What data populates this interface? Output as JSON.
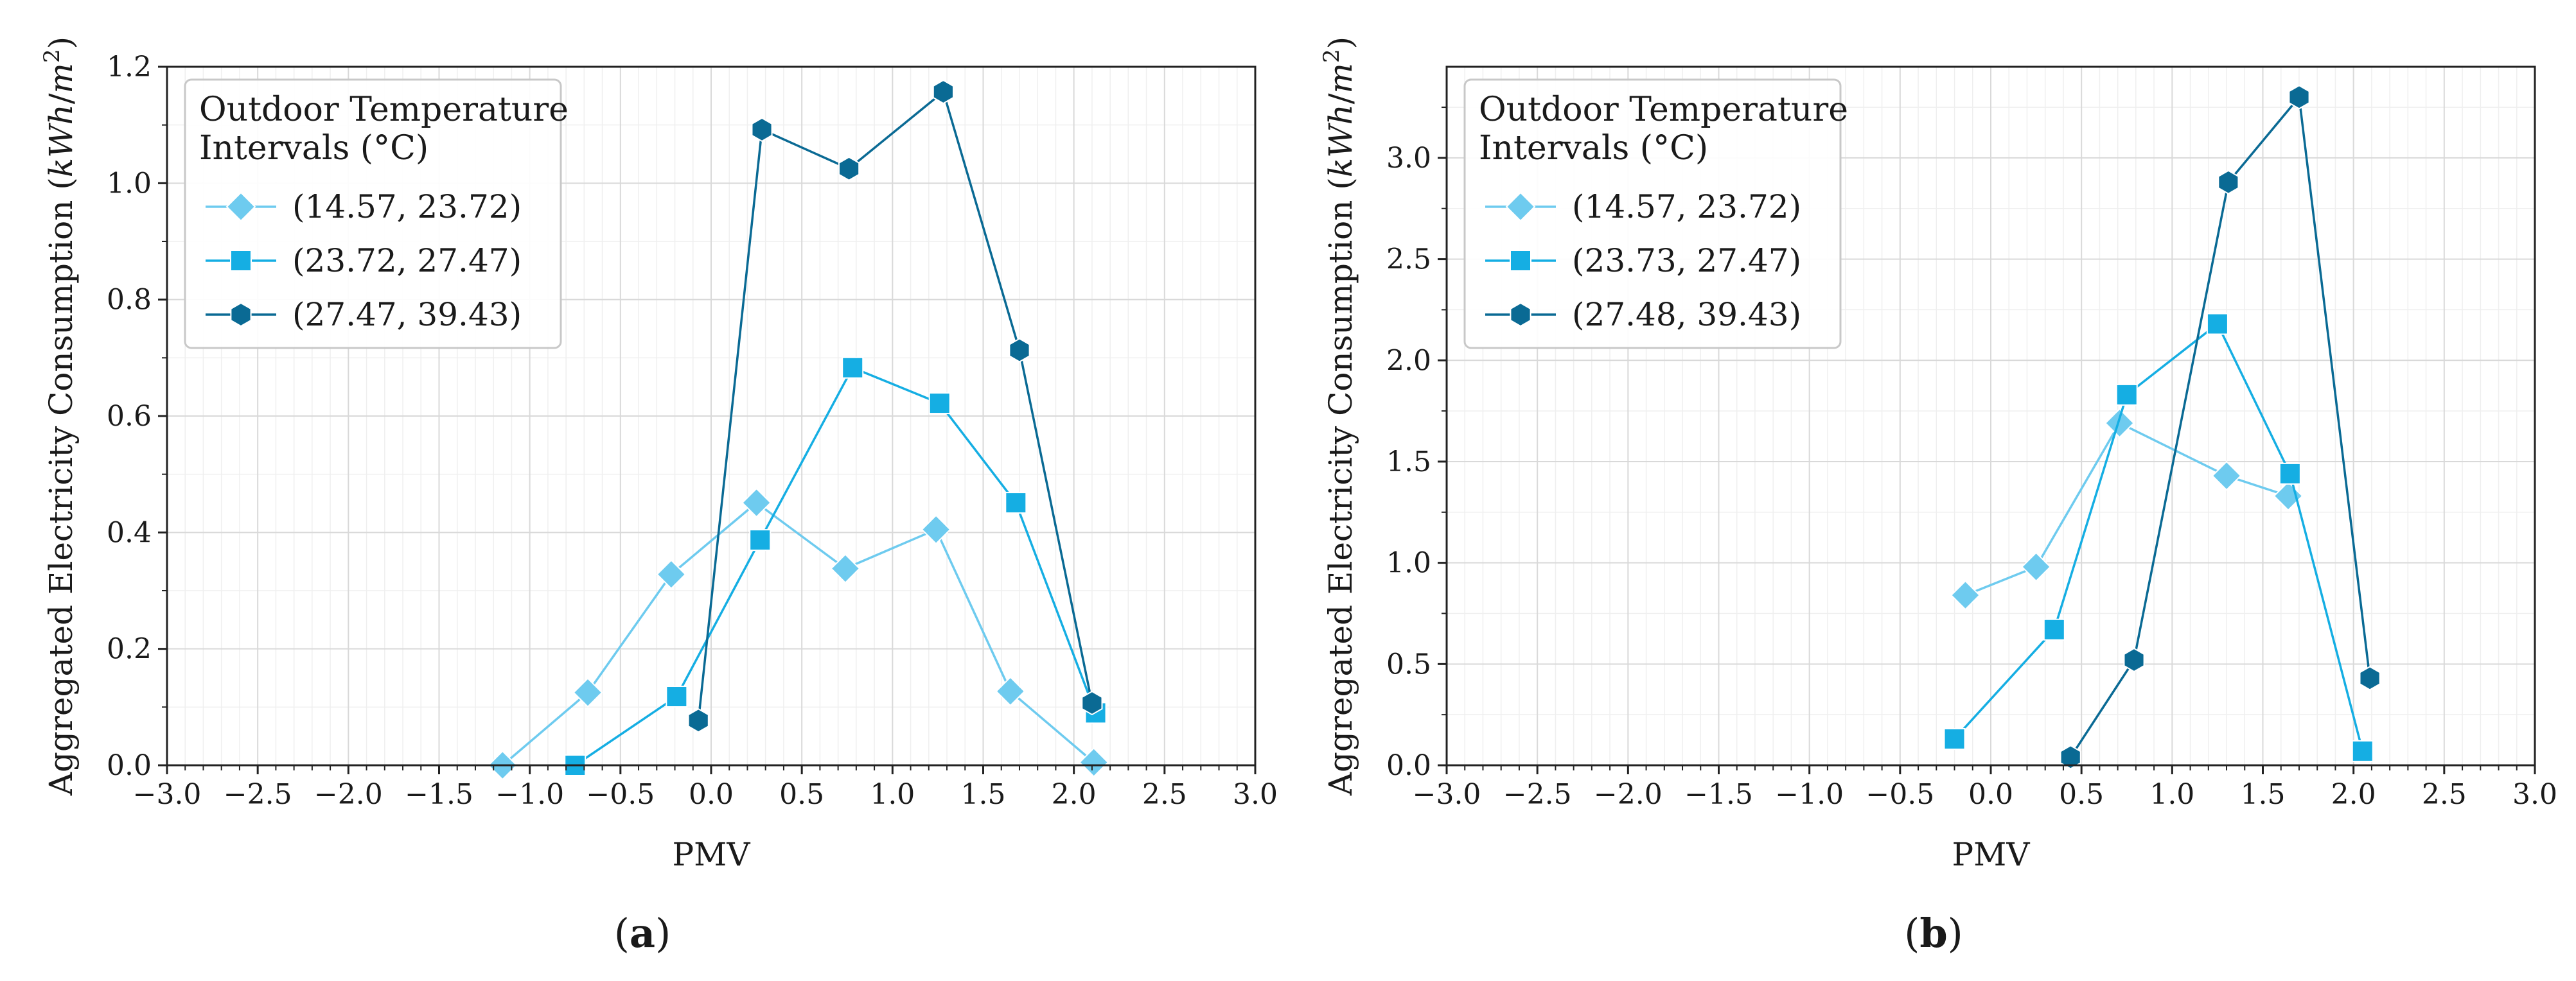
{
  "chart_data": [
    {
      "type": "line",
      "panel_label": "a",
      "caption": {
        "open": "(",
        "letter": "a",
        "close": ")"
      },
      "title": "",
      "xlabel": "PMV",
      "ylabel": "Aggregated Electricity Consumption (kWh/m²)",
      "ylabel_parts": {
        "text": "Aggregated Electricity Consumption (",
        "unit_kwh": "kWh",
        "unit_slash": "/",
        "unit_m": "m",
        "unit_sup": "2",
        "close": ")"
      },
      "xlim": [
        -3.0,
        3.0
      ],
      "ylim": [
        0.0,
        1.2
      ],
      "xticks": [
        "-3.0",
        "-2.5",
        "-2.0",
        "-1.5",
        "-1.0",
        "-0.5",
        "0.0",
        "0.5",
        "1.0",
        "1.5",
        "2.0",
        "2.5",
        "3.0"
      ],
      "yticks": [
        "0.0",
        "0.2",
        "0.4",
        "0.6",
        "0.8",
        "1.0",
        "1.2"
      ],
      "grid": true,
      "legend": {
        "title_line1": "Outdoor Temperature",
        "title_line2": "Intervals (°C)",
        "placement": "top-left"
      },
      "series": [
        {
          "name": "(14.57, 23.72)",
          "marker": "diamond",
          "color": "#6ecbef",
          "x": [
            -1.15,
            -0.68,
            -0.22,
            0.25,
            0.74,
            1.24,
            1.65,
            2.11
          ],
          "y": [
            0.0,
            0.125,
            0.328,
            0.451,
            0.338,
            0.405,
            0.127,
            0.005
          ]
        },
        {
          "name": "(23.72, 27.47)",
          "marker": "square",
          "color": "#15aee3",
          "x": [
            -0.75,
            -0.19,
            0.27,
            0.78,
            1.26,
            1.68,
            2.12
          ],
          "y": [
            0.0,
            0.118,
            0.387,
            0.683,
            0.622,
            0.451,
            0.09
          ]
        },
        {
          "name": "(27.47, 39.43)",
          "marker": "hexagon",
          "color": "#0a6a94",
          "x": [
            -0.07,
            0.28,
            0.76,
            1.28,
            1.7,
            2.1
          ],
          "y": [
            0.077,
            1.092,
            1.025,
            1.157,
            0.713,
            0.107
          ]
        }
      ]
    },
    {
      "type": "line",
      "panel_label": "b",
      "caption": {
        "open": "(",
        "letter": "b",
        "close": ")"
      },
      "title": "",
      "xlabel": "PMV",
      "ylabel": "Aggregated Electricity Consumption (kWh/m²)",
      "ylabel_parts": {
        "text": "Aggregated Electricity Consumption (",
        "unit_kwh": "kWh",
        "unit_slash": "/",
        "unit_m": "m",
        "unit_sup": "2",
        "close": ")"
      },
      "xlim": [
        -3.0,
        3.0
      ],
      "ylim": [
        0.0,
        3.45
      ],
      "xticks": [
        "-3.0",
        "-2.5",
        "-2.0",
        "-1.5",
        "-1.0",
        "-0.5",
        "0.0",
        "0.5",
        "1.0",
        "1.5",
        "2.0",
        "2.5",
        "3.0"
      ],
      "yticks": [
        "0.0",
        "0.5",
        "1.0",
        "1.5",
        "2.0",
        "2.5",
        "3.0"
      ],
      "grid": true,
      "legend": {
        "title_line1": "Outdoor Temperature",
        "title_line2": "Intervals (°C)",
        "placement": "top-left"
      },
      "series": [
        {
          "name": "(14.57, 23.72)",
          "marker": "diamond",
          "color": "#6ecbef",
          "x": [
            -0.14,
            0.25,
            0.71,
            1.3,
            1.64
          ],
          "y": [
            0.84,
            0.98,
            1.69,
            1.43,
            1.33
          ]
        },
        {
          "name": "(23.73, 27.47)",
          "marker": "square",
          "color": "#15aee3",
          "x": [
            -0.2,
            0.35,
            0.75,
            1.25,
            1.65,
            2.05
          ],
          "y": [
            0.13,
            0.67,
            1.83,
            2.18,
            1.44,
            0.07
          ]
        },
        {
          "name": "(27.48, 39.43)",
          "marker": "hexagon",
          "color": "#0a6a94",
          "x": [
            0.44,
            0.79,
            1.31,
            1.7,
            2.09
          ],
          "y": [
            0.04,
            0.52,
            2.88,
            3.3,
            0.43
          ]
        }
      ]
    }
  ]
}
